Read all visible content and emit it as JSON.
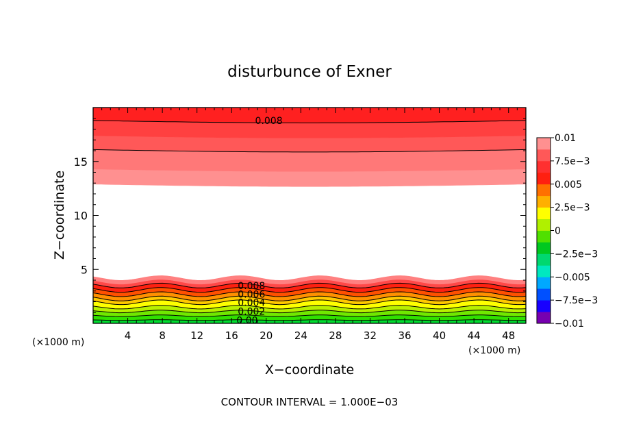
{
  "chart_data": {
    "type": "contour",
    "title": "disturbunce of Exner",
    "xlabel": "X−coordinate",
    "ylabel": "Z−coordinate",
    "x_unit": "(×1000 m)",
    "y_unit": "(×1000 m)",
    "xlim": [
      0,
      50
    ],
    "ylim": [
      0,
      20
    ],
    "x_ticks": [
      4,
      8,
      12,
      16,
      20,
      24,
      28,
      32,
      36,
      40,
      44,
      48
    ],
    "y_ticks": [
      5,
      10,
      15
    ],
    "footer": "CONTOUR INTERVAL = 1.000E−03",
    "contour_interval": 0.001,
    "contour_labels": [
      {
        "text": "0.008",
        "x": 20.3,
        "y": 18.8
      },
      {
        "text": "0.008",
        "x": 18.3,
        "y": 3.5
      },
      {
        "text": "0.006",
        "x": 18.3,
        "y": 2.7
      },
      {
        "text": "0.004",
        "x": 18.3,
        "y": 1.95
      },
      {
        "text": "0.002",
        "x": 18.3,
        "y": 1.1
      },
      {
        "text": "0.00",
        "x": 17.8,
        "y": 0.3
      }
    ],
    "colorbar": {
      "ticks": [
        "0.01",
        "7.5e−3",
        "0.005",
        "2.5e−3",
        "0",
        "−2.5e−3",
        "−0.005",
        "−7.5e−3",
        "−0.01"
      ],
      "min": -0.01,
      "max": 0.01,
      "colors": [
        "#7700b0",
        "#1800ff",
        "#0050ff",
        "#00a8ff",
        "#00e8c0",
        "#00d870",
        "#00c820",
        "#50e000",
        "#b0f000",
        "#ffff00",
        "#ffb000",
        "#ff7000",
        "#ff2010",
        "#ff3030",
        "#ff5858",
        "#ff9090"
      ]
    },
    "upper_layer": {
      "bands": [
        {
          "y0": 12.9,
          "y1": 14.3,
          "color": "#ff9090"
        },
        {
          "y0": 14.3,
          "y1": 16.1,
          "color": "#ff7878"
        },
        {
          "y0": 16.1,
          "y1": 17.4,
          "color": "#ff5858"
        },
        {
          "y0": 17.4,
          "y1": 18.8,
          "color": "#ff4040"
        },
        {
          "y0": 18.8,
          "y1": 20.0,
          "color": "#ff2020"
        }
      ],
      "contours": [
        16.1,
        18.8
      ]
    },
    "lower_layer": {
      "bands": [
        {
          "y0": 0.0,
          "y1": 0.3,
          "color": "#00dd30"
        },
        {
          "y0": 0.3,
          "y1": 0.7,
          "color": "#30e000"
        },
        {
          "y0": 0.7,
          "y1": 1.1,
          "color": "#70e800"
        },
        {
          "y0": 1.1,
          "y1": 1.5,
          "color": "#b8f000"
        },
        {
          "y0": 1.5,
          "y1": 1.95,
          "color": "#ffff00"
        },
        {
          "y0": 1.95,
          "y1": 2.3,
          "color": "#ffc800"
        },
        {
          "y0": 2.3,
          "y1": 2.7,
          "color": "#ff9000"
        },
        {
          "y0": 2.7,
          "y1": 3.1,
          "color": "#ff5000"
        },
        {
          "y0": 3.1,
          "y1": 3.5,
          "color": "#ff2010"
        },
        {
          "y0": 3.5,
          "y1": 3.85,
          "color": "#ff4848"
        },
        {
          "y0": 3.85,
          "y1": 4.2,
          "color": "#ff8080"
        }
      ],
      "contours": [
        0.3,
        0.7,
        1.1,
        1.5,
        1.95,
        2.3,
        2.7,
        3.1,
        3.5
      ]
    }
  }
}
